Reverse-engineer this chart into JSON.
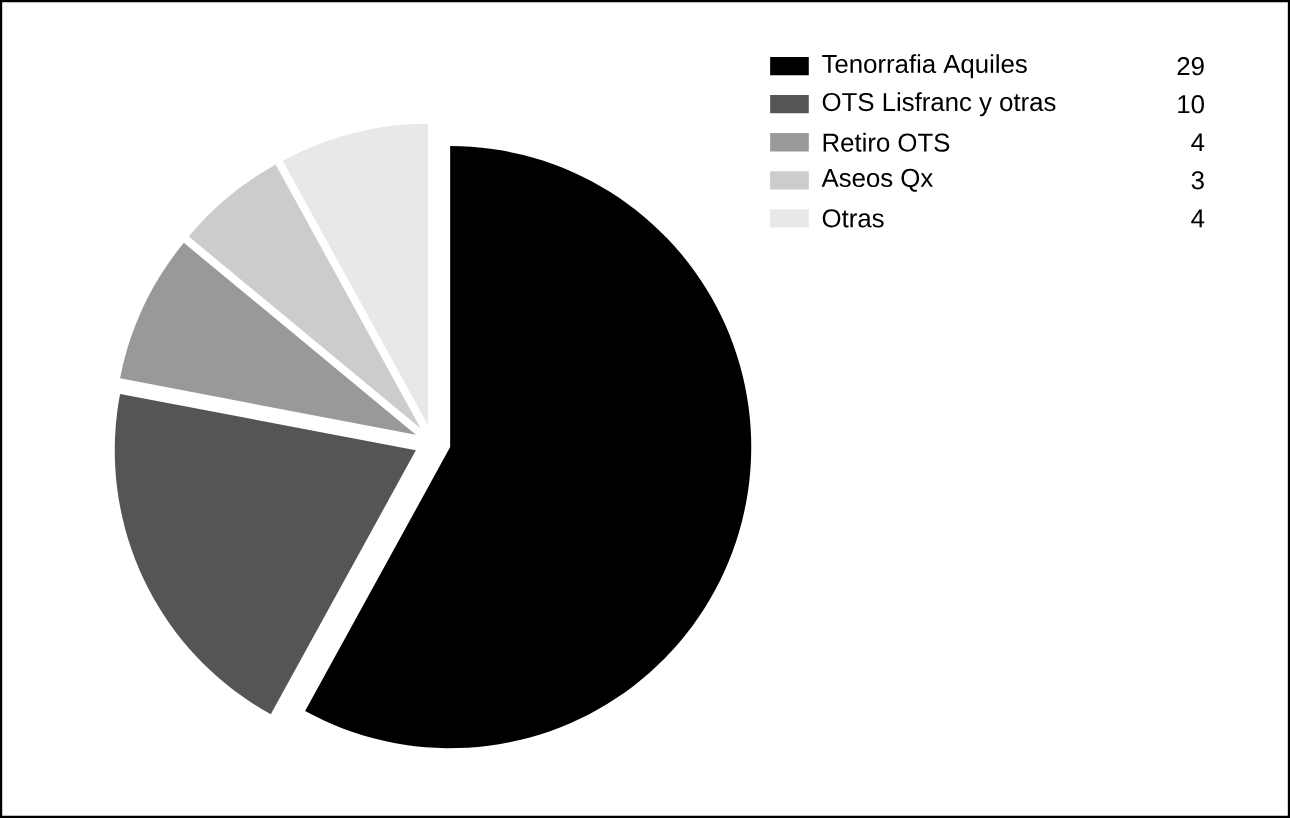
{
  "chart_data": {
    "type": "pie",
    "categories": [
      "Tenorrafia Aquiles",
      "OTS Lisfranc y otras",
      "Retiro OTS",
      "Aseos Qx",
      "Otras"
    ],
    "values": [
      29,
      10,
      4,
      3,
      4
    ],
    "colors": [
      "#000000",
      "#555555",
      "#999999",
      "#cccccc",
      "#e8e8e8"
    ],
    "legend": "top right",
    "data_labels": true
  }
}
